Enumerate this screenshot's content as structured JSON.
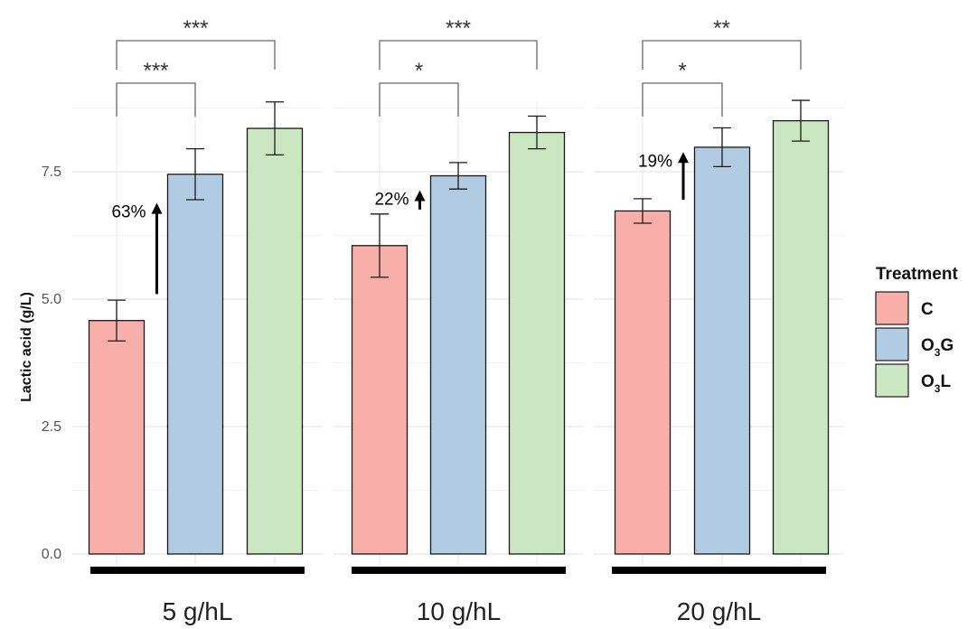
{
  "chart_data": {
    "type": "bar",
    "ylabel": "Lactic acid (g/L)",
    "ylim": [
      0,
      10
    ],
    "yticks": [
      "0.0",
      "2.5",
      "5.0",
      "7.5"
    ],
    "grid": true,
    "legend": {
      "title": "Treatment",
      "placement": "right",
      "entries": [
        {
          "label": "C",
          "sub": "",
          "rest": "",
          "color": "#F8AFA9"
        },
        {
          "label": "O",
          "sub": "3",
          "rest": "G",
          "color": "#B1CBE3"
        },
        {
          "label": "O",
          "sub": "3",
          "rest": "L",
          "color": "#CBE7C2"
        }
      ]
    },
    "facets": [
      {
        "label": "5 g/hL",
        "values": [
          4.58,
          7.45,
          8.35
        ],
        "errors": [
          0.4,
          0.5,
          0.52
        ],
        "increase": "63%",
        "brackets": [
          {
            "from": 0,
            "to": 1,
            "stars": "***"
          },
          {
            "from": 0,
            "to": 2,
            "stars": "***"
          }
        ]
      },
      {
        "label": "10 g/hL",
        "values": [
          6.05,
          7.42,
          8.27
        ],
        "errors": [
          0.62,
          0.26,
          0.32
        ],
        "increase": "22%",
        "brackets": [
          {
            "from": 0,
            "to": 1,
            "stars": "*"
          },
          {
            "from": 0,
            "to": 2,
            "stars": "***"
          }
        ]
      },
      {
        "label": "20 g/hL",
        "values": [
          6.73,
          7.98,
          8.5
        ],
        "errors": [
          0.24,
          0.38,
          0.4
        ],
        "increase": "19%",
        "brackets": [
          {
            "from": 0,
            "to": 1,
            "stars": "*"
          },
          {
            "from": 0,
            "to": 2,
            "stars": "**"
          }
        ]
      }
    ],
    "series": [
      {
        "name": "C",
        "color": "#F8AFA9"
      },
      {
        "name": "O3G",
        "color": "#B1CBE3"
      },
      {
        "name": "O3L",
        "color": "#CBE7C2"
      }
    ]
  }
}
